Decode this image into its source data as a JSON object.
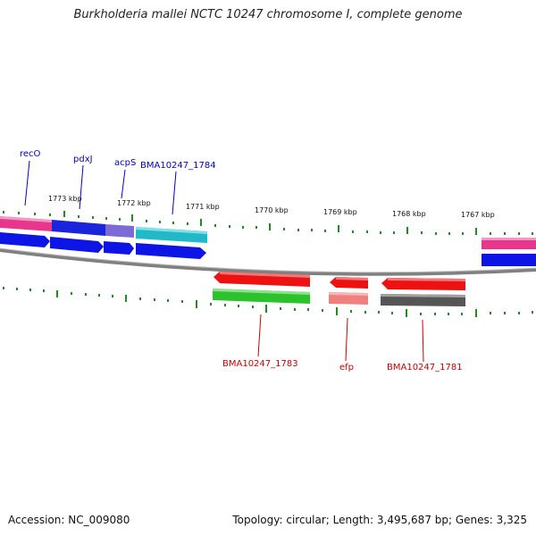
{
  "title": "Burkholderia mallei NCTC 10247 chromosome I, complete genome",
  "footer": {
    "accession": "Accession: NC_009080",
    "topology": "Topology: circular; Length: 3,495,687 bp; Genes: 3,325"
  },
  "ticks": [
    {
      "label": "1773 kbp"
    },
    {
      "label": "1772 kbp"
    },
    {
      "label": "1771 kbp"
    },
    {
      "label": "1770 kbp"
    },
    {
      "label": "1769 kbp"
    },
    {
      "label": "1768 kbp"
    },
    {
      "label": "1767 kbp"
    }
  ],
  "gene_labels_top": [
    {
      "text": "recO"
    },
    {
      "text": "pdxJ"
    },
    {
      "text": "acpS"
    },
    {
      "text": "BMA10247_1784"
    }
  ],
  "gene_labels_bottom": [
    {
      "text": "BMA10247_1783"
    },
    {
      "text": "efp"
    },
    {
      "text": "BMA10247_1781"
    }
  ],
  "colors": {
    "top_label": "#0000cc",
    "bottom_label": "#cc0000",
    "tick": "#228b22",
    "backbone": "#808080"
  }
}
